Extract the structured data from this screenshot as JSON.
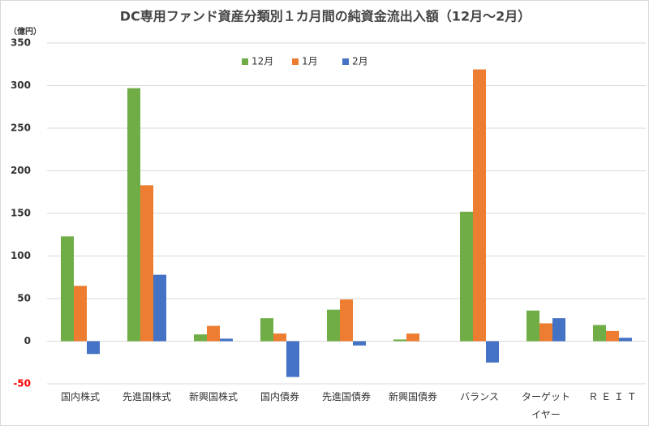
{
  "chart_data": {
    "type": "bar",
    "title": "DC専用ファンド資産分類別１カ月間の純資金流出入額（12月～2月）",
    "y_unit": "（億円）",
    "categories": [
      "国内株式",
      "先進国株式",
      "新興国株式",
      "国内債券",
      "先進国債券",
      "新興国債券",
      "バランス",
      "ターゲット\nイヤー",
      "Ｒ Ｅ Ｉ Ｔ"
    ],
    "series": [
      {
        "name": "12月",
        "color": "#70ad47",
        "values": [
          123,
          297,
          8,
          27,
          37,
          2,
          152,
          36,
          19
        ]
      },
      {
        "name": "1月",
        "color": "#ed7d31",
        "values": [
          65,
          183,
          18,
          9,
          49,
          9,
          319,
          21,
          12
        ]
      },
      {
        "name": "2月",
        "color": "#4472c4",
        "values": [
          -15,
          78,
          3,
          -42,
          -5,
          0,
          -25,
          27,
          4
        ]
      }
    ],
    "ylim": [
      -50,
      350
    ],
    "yticks": [
      -50,
      0,
      50,
      100,
      150,
      200,
      250,
      300,
      350
    ],
    "negative_tick_color": "#ff0000",
    "grid": true,
    "legend": "top"
  }
}
